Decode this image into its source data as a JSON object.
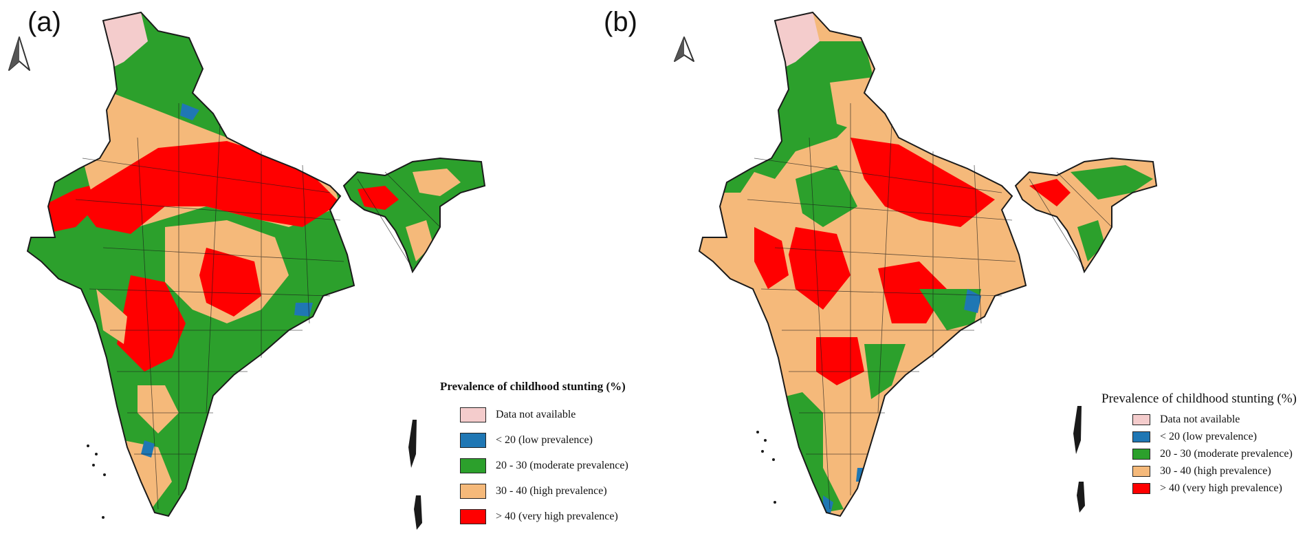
{
  "colors": {
    "na": "#f4cccc",
    "low": "#1f77b4",
    "moderate": "#2ca02c",
    "high": "#f5b97a",
    "very_high": "#ff0000",
    "border": "#1a1a1a"
  },
  "icons": {
    "north_arrow": "north-arrow-icon"
  },
  "panels": [
    {
      "label": "(a)",
      "legend": {
        "title": "Prevalence of childhood stunting (%)",
        "items": [
          {
            "label": "Data not available",
            "color_key": "na"
          },
          {
            "label": "< 20 (low prevalence)",
            "color_key": "low"
          },
          {
            "label": "20 - 30 (moderate prevalence)",
            "color_key": "moderate"
          },
          {
            "label": "30 - 40 (high prevalence)",
            "color_key": "high"
          },
          {
            "label": "> 40 (very high prevalence)",
            "color_key": "very_high"
          }
        ]
      }
    },
    {
      "label": "(b)",
      "legend": {
        "title": "Prevalence of childhood stunting (%)",
        "items": [
          {
            "label": "Data not available",
            "color_key": "na"
          },
          {
            "label": "< 20 (low prevalence)",
            "color_key": "low"
          },
          {
            "label": "20 - 30 (moderate prevalence)",
            "color_key": "moderate"
          },
          {
            "label": "30 - 40 (high prevalence)",
            "color_key": "high"
          },
          {
            "label": "> 40 (very high prevalence)",
            "color_key": "very_high"
          }
        ]
      }
    }
  ]
}
